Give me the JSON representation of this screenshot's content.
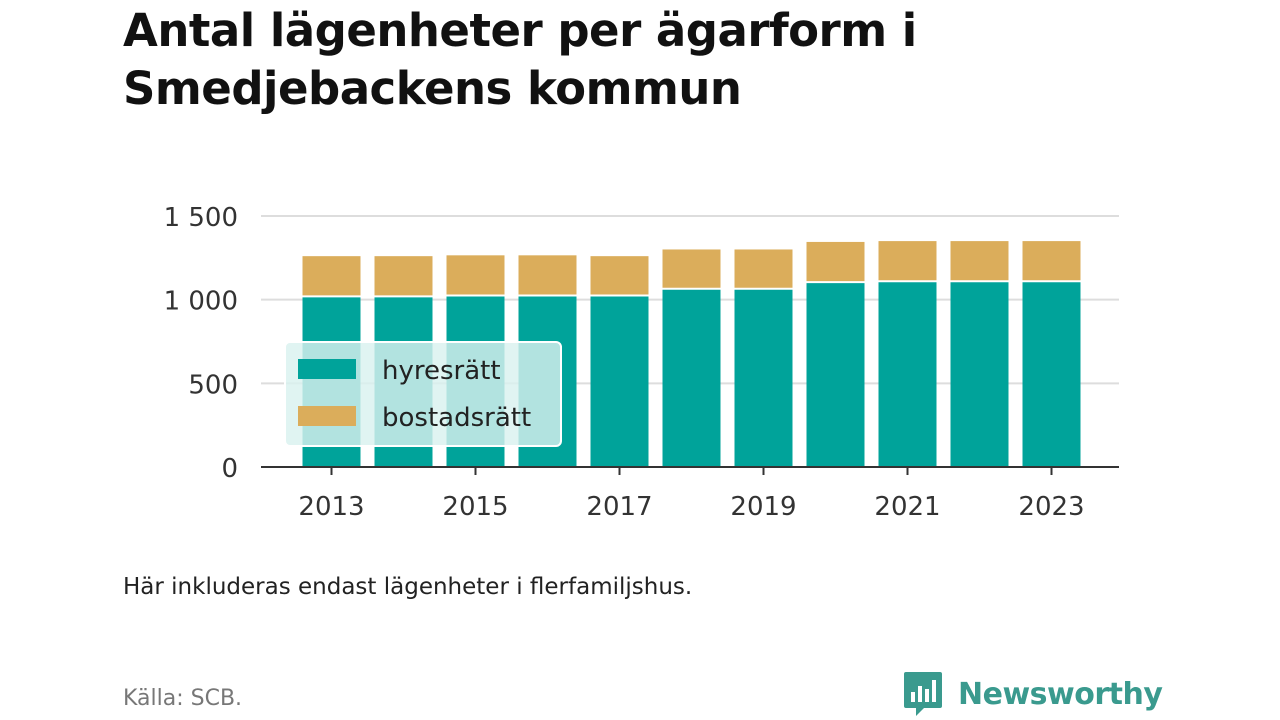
{
  "title": "Antal lägenheter per ägarform i Smedjebackens kommun",
  "note": "Här inkluderas endast lägenheter i flerfamiljshus.",
  "source": "Källa: SCB.",
  "brand": {
    "name": "Newsworthy",
    "icon": "newsworthy-logo-icon",
    "color": "#3a9a8e"
  },
  "chart_data": {
    "type": "bar",
    "stacked": true,
    "categories": [
      "2013",
      "2014",
      "2015",
      "2016",
      "2017",
      "2018",
      "2019",
      "2020",
      "2021",
      "2022",
      "2023"
    ],
    "series": [
      {
        "name": "hyresrätt",
        "color": "#00a39a",
        "values": [
          1020,
          1020,
          1025,
          1025,
          1025,
          1065,
          1065,
          1105,
          1110,
          1110,
          1110
        ]
      },
      {
        "name": "bostadsrätt",
        "color": "#dbad5b",
        "values": [
          240,
          240,
          240,
          240,
          235,
          235,
          235,
          240,
          240,
          240,
          240
        ]
      }
    ],
    "ylim": [
      0,
      1500
    ],
    "yticks": [
      0,
      500,
      1000,
      1500
    ],
    "ytick_labels": [
      "0",
      "500",
      "1 000",
      "1 500"
    ],
    "xtick_labels": [
      "2013",
      "2015",
      "2017",
      "2019",
      "2021",
      "2023"
    ],
    "grid": true,
    "legend_position": "left-middle"
  }
}
